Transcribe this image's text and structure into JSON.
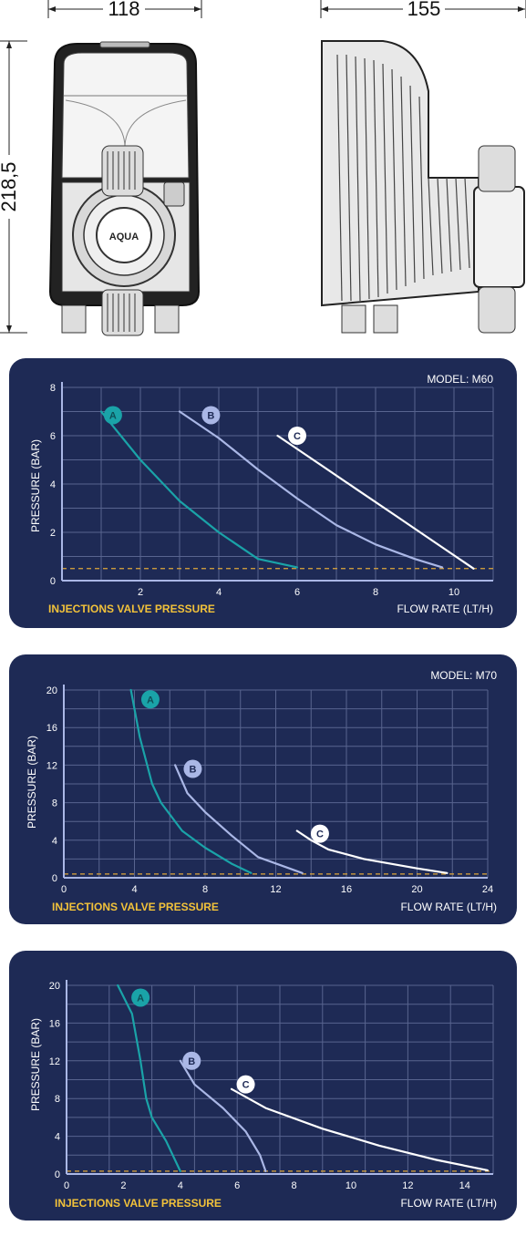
{
  "dimensions": {
    "front_width": "118",
    "side_width": "155",
    "height": "218,5"
  },
  "product_logo_text": "AQUA",
  "chart_data": [
    {
      "type": "line",
      "model": "MODEL: M60",
      "ylabel": "PRESSURE (BAR)",
      "xlabel": "FLOW RATE (LT/H)",
      "valve_label": "INJECTIONS VALVE PRESSURE",
      "xlim": [
        0,
        11
      ],
      "ylim": [
        0,
        8
      ],
      "x_ticks": [
        "2",
        "4",
        "6",
        "8",
        "10"
      ],
      "x_tick_values": [
        2,
        4,
        6,
        8,
        10
      ],
      "y_ticks": [
        "0",
        "2",
        "4",
        "6",
        "8"
      ],
      "y_tick_values": [
        0,
        2,
        4,
        6,
        8
      ],
      "x_grid": [
        0,
        1,
        2,
        3,
        4,
        5,
        6,
        7,
        8,
        9,
        10,
        11
      ],
      "y_grid": [
        0,
        1,
        2,
        3,
        4,
        5,
        6,
        7,
        8
      ],
      "valve_pressure": 0.5,
      "series": [
        {
          "name": "A",
          "color": "#1aa3a8",
          "label_at": [
            1.3,
            6.85
          ],
          "points": [
            [
              1.0,
              7.0
            ],
            [
              2.0,
              5.0
            ],
            [
              3.0,
              3.3
            ],
            [
              4.0,
              2.0
            ],
            [
              5.0,
              0.9
            ],
            [
              6.0,
              0.55
            ]
          ]
        },
        {
          "name": "B",
          "color": "#aab7e6",
          "label_at": [
            3.8,
            6.85
          ],
          "points": [
            [
              3.0,
              7.0
            ],
            [
              4.0,
              5.9
            ],
            [
              5.0,
              4.6
            ],
            [
              6.0,
              3.4
            ],
            [
              7.0,
              2.3
            ],
            [
              8.0,
              1.5
            ],
            [
              9.0,
              0.9
            ],
            [
              9.7,
              0.55
            ]
          ]
        },
        {
          "name": "C",
          "color": "#ffffff",
          "label_at": [
            6.0,
            6.0
          ],
          "points": [
            [
              5.5,
              6.0
            ],
            [
              6.5,
              4.9
            ],
            [
              7.5,
              3.8
            ],
            [
              8.5,
              2.7
            ],
            [
              9.5,
              1.6
            ],
            [
              10.5,
              0.5
            ]
          ]
        }
      ]
    },
    {
      "type": "line",
      "model": "MODEL: M70",
      "ylabel": "PRESSURE (BAR)",
      "xlabel": "FLOW RATE (LT/H)",
      "valve_label": "INJECTIONS VALVE PRESSURE",
      "xlim": [
        0,
        24
      ],
      "ylim": [
        0,
        20
      ],
      "x_ticks": [
        "0",
        "4",
        "8",
        "12",
        "16",
        "20",
        "24"
      ],
      "x_tick_values": [
        0,
        4,
        8,
        12,
        16,
        20,
        24
      ],
      "y_ticks": [
        "0",
        "4",
        "8",
        "12",
        "16",
        "20"
      ],
      "y_tick_values": [
        0,
        4,
        8,
        12,
        16,
        20
      ],
      "x_grid": [
        0,
        2,
        4,
        6,
        8,
        10,
        12,
        14,
        16,
        18,
        20,
        22,
        24
      ],
      "y_grid": [
        0,
        2,
        4,
        6,
        8,
        10,
        12,
        14,
        16,
        18,
        20
      ],
      "valve_pressure": 0.4,
      "series": [
        {
          "name": "A",
          "color": "#1aa3a8",
          "label_at": [
            4.9,
            19.0
          ],
          "points": [
            [
              3.8,
              20.0
            ],
            [
              4.3,
              15.0
            ],
            [
              5.0,
              10.0
            ],
            [
              5.5,
              8.0
            ],
            [
              6.7,
              5.0
            ],
            [
              8.0,
              3.2
            ],
            [
              9.5,
              1.5
            ],
            [
              10.6,
              0.5
            ]
          ]
        },
        {
          "name": "B",
          "color": "#aab7e6",
          "label_at": [
            7.3,
            11.6
          ],
          "points": [
            [
              6.3,
              12.0
            ],
            [
              7.0,
              9.0
            ],
            [
              8.0,
              7.0
            ],
            [
              9.5,
              4.5
            ],
            [
              11.0,
              2.2
            ],
            [
              13.5,
              0.5
            ]
          ]
        },
        {
          "name": "C",
          "color": "#ffffff",
          "label_at": [
            14.5,
            4.7
          ],
          "points": [
            [
              13.2,
              5.0
            ],
            [
              14.0,
              4.0
            ],
            [
              15.0,
              3.0
            ],
            [
              17.0,
              2.0
            ],
            [
              20.0,
              1.0
            ],
            [
              21.7,
              0.5
            ]
          ]
        }
      ]
    },
    {
      "type": "line",
      "model": "",
      "ylabel": "PRESSURE (BAR)",
      "xlabel": "FLOW RATE (LT/H)",
      "valve_label": "INJECTIONS VALVE PRESSURE",
      "xlim": [
        0,
        15
      ],
      "ylim": [
        0,
        20
      ],
      "x_ticks": [
        "0",
        "2",
        "4",
        "6",
        "8",
        "10",
        "12",
        "14"
      ],
      "x_tick_values": [
        0,
        2,
        4,
        6,
        8,
        10,
        12,
        14
      ],
      "y_ticks": [
        "0",
        "4",
        "8",
        "12",
        "16",
        "20"
      ],
      "y_tick_values": [
        0,
        4,
        8,
        12,
        16,
        20
      ],
      "x_grid": [
        0,
        1.5,
        3,
        4.5,
        6,
        7.5,
        9,
        10.5,
        12,
        13.5,
        15
      ],
      "y_grid": [
        0,
        2,
        4,
        6,
        8,
        10,
        12,
        14,
        16,
        18,
        20
      ],
      "valve_pressure": 0.3,
      "series": [
        {
          "name": "A",
          "color": "#1aa3a8",
          "label_at": [
            2.6,
            18.7
          ],
          "points": [
            [
              1.8,
              20.0
            ],
            [
              2.3,
              17.0
            ],
            [
              2.6,
              12.0
            ],
            [
              2.8,
              8.0
            ],
            [
              3.0,
              6.0
            ],
            [
              3.5,
              3.5
            ],
            [
              4.0,
              0.3
            ]
          ]
        },
        {
          "name": "B",
          "color": "#aab7e6",
          "label_at": [
            4.4,
            12.0
          ],
          "points": [
            [
              4.0,
              12.0
            ],
            [
              4.5,
              9.5
            ],
            [
              5.5,
              7.0
            ],
            [
              6.3,
              4.5
            ],
            [
              6.8,
              2.0
            ],
            [
              7.0,
              0.3
            ]
          ]
        },
        {
          "name": "C",
          "color": "#ffffff",
          "label_at": [
            6.3,
            9.5
          ],
          "points": [
            [
              5.8,
              9.0
            ],
            [
              7.0,
              7.0
            ],
            [
              9.0,
              4.8
            ],
            [
              11.0,
              3.0
            ],
            [
              13.0,
              1.5
            ],
            [
              14.8,
              0.4
            ]
          ]
        }
      ]
    }
  ]
}
